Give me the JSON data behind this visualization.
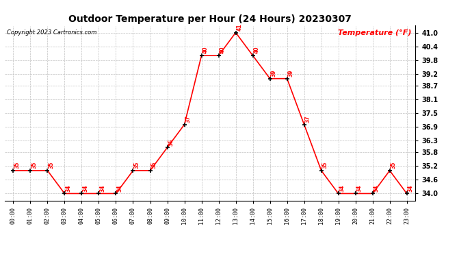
{
  "title": "Outdoor Temperature per Hour (24 Hours) 20230307",
  "copyright": "Copyright 2023 Cartronics.com",
  "legend_label": "Temperature (°F)",
  "hours": [
    "00:00",
    "01:00",
    "02:00",
    "03:00",
    "04:00",
    "05:00",
    "06:00",
    "07:00",
    "08:00",
    "09:00",
    "10:00",
    "11:00",
    "12:00",
    "13:00",
    "14:00",
    "15:00",
    "16:00",
    "17:00",
    "18:00",
    "19:00",
    "20:00",
    "21:00",
    "22:00",
    "23:00"
  ],
  "temperatures": [
    35,
    35,
    35,
    34,
    34,
    34,
    34,
    35,
    35,
    36,
    37,
    40,
    40,
    41,
    40,
    39,
    39,
    37,
    35,
    34,
    34,
    34,
    35,
    34
  ],
  "ylim_min": 33.7,
  "ylim_max": 41.3,
  "yticks": [
    34.0,
    34.6,
    35.2,
    35.8,
    36.3,
    36.9,
    37.5,
    38.1,
    38.7,
    39.2,
    39.8,
    40.4,
    41.0
  ],
  "line_color": "red",
  "marker_color": "black",
  "label_color": "red",
  "title_color": "black",
  "copyright_color": "black",
  "legend_color": "red",
  "bg_color": "white",
  "grid_color": "#c0c0c0"
}
